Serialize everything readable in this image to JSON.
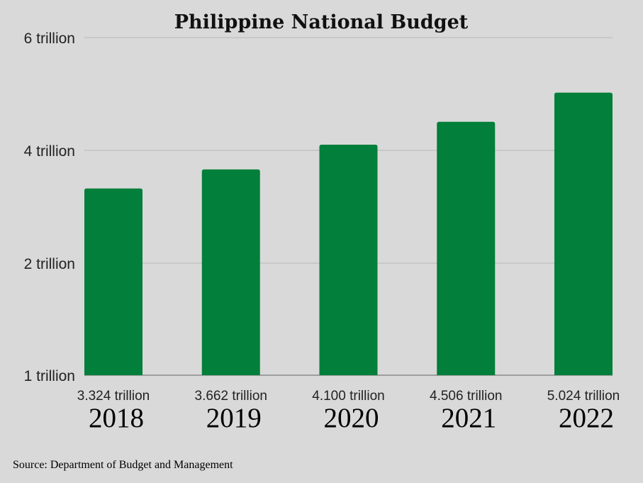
{
  "chart_data": {
    "type": "bar",
    "title": "Philippine National Budget",
    "categories": [
      "2018",
      "2019",
      "2020",
      "2021",
      "2022"
    ],
    "values": [
      3.324,
      3.662,
      4.1,
      4.506,
      5.024
    ],
    "value_labels": [
      "3.324 trillion",
      "3.662 trillion",
      "4.100 trillion",
      "4.506 trillion",
      "5.024 trillion"
    ],
    "y_ticks": [
      {
        "value": 1,
        "label": "1 trillion"
      },
      {
        "value": 2,
        "label": "2 trillion"
      },
      {
        "value": 4,
        "label": "4 trillion"
      },
      {
        "value": 6,
        "label": "6 trillion"
      }
    ],
    "ylim": [
      1,
      6
    ],
    "grid": true,
    "bar_color": "#027f3a"
  },
  "footer": {
    "source": "Source: Department of Budget and Management"
  }
}
